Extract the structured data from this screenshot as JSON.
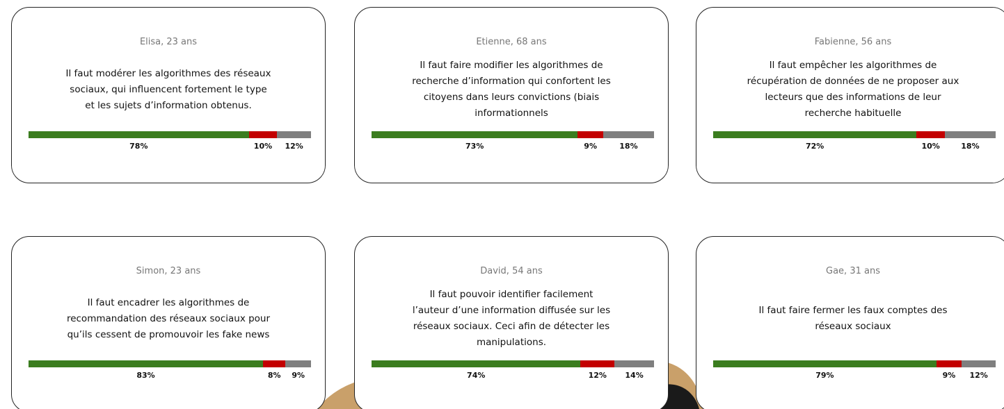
{
  "cards": [
    {
      "author": "Elisa, 23 ans",
      "lines": [
        "Il faut modérer les algorithmes des réseaux",
        "sociaux, qui influencent fortement le type",
        "et les sujets d’information obtenus."
      ],
      "values": [
        78,
        10,
        12
      ],
      "value_labels": [
        "78%",
        "10%",
        "12%"
      ]
    },
    {
      "author": "Etienne, 68 ans",
      "lines": [
        "Il faut faire modifier les algorithmes de",
        "recherche d’information qui confortent les",
        "citoyens dans leurs convictions (biais",
        "informationnels"
      ],
      "values": [
        73,
        9,
        18
      ],
      "value_labels": [
        "73%",
        "9%",
        "18%"
      ]
    },
    {
      "author": "Fabienne, 56 ans",
      "lines": [
        "Il faut empêcher les algorithmes de",
        "récupération de données de ne proposer aux",
        "lecteurs que des informations de leur",
        "recherche habituelle"
      ],
      "values": [
        72,
        10,
        18
      ],
      "value_labels": [
        "72%",
        "10%",
        "18%"
      ]
    },
    {
      "author": "Simon, 23 ans",
      "lines": [
        "Il faut encadrer les algorithmes de",
        "recommandation des réseaux sociaux pour",
        "qu’ils cessent de promouvoir les fake news"
      ],
      "values": [
        83,
        8,
        9
      ],
      "value_labels": [
        "83%",
        "8%",
        "9%"
      ]
    },
    {
      "author": "David, 54 ans",
      "lines": [
        "Il faut pouvoir identifier facilement",
        "l’auteur d’une information diffusée sur les",
        "réseaux sociaux. Ceci afin de détecter les",
        "manipulations."
      ],
      "values": [
        74,
        12,
        14
      ],
      "value_labels": [
        "74%",
        "12%",
        "14%"
      ]
    },
    {
      "author": "Gae, 31 ans",
      "lines": [
        "Il faut faire fermer les faux comptes des",
        "réseaux sociaux"
      ],
      "values": [
        79,
        9,
        12
      ],
      "value_labels": [
        "79%",
        "9%",
        "12%"
      ]
    }
  ],
  "colors": [
    "#3b7d1f",
    "#c30000",
    "#7f7f7f"
  ]
}
